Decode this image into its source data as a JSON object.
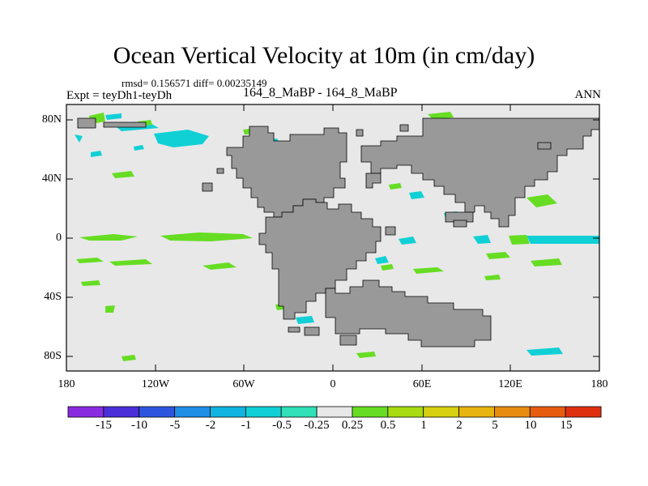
{
  "title": "Ocean Vertical Velocity at 10m (in cm/day)",
  "stats_text": "rmsd= 0.156571 diff= 0.00235149",
  "experiment_label": "Expt = teyDh1-teyDh",
  "case_label": "164_8_MaBP - 164_8_MaBP",
  "season_label": "ANN",
  "y_ticks": [
    "80N",
    "40N",
    "0",
    "40S",
    "80S"
  ],
  "x_ticks": [
    "180",
    "120W",
    "60W",
    "0",
    "60E",
    "120E",
    "180"
  ],
  "colorbar": {
    "colors": [
      "#8a2be2",
      "#4b2fd8",
      "#2e55e0",
      "#1f8fe6",
      "#10b4e0",
      "#10d0d6",
      "#2fe0b8",
      "#e8e8e8",
      "#66dd22",
      "#a8dc10",
      "#d7d010",
      "#e8b410",
      "#e88c10",
      "#e85c10",
      "#e03010"
    ],
    "labels": [
      "-15",
      "-10",
      "-5",
      "-2",
      "-1",
      "-0.5",
      "-0.25",
      "0.25",
      "0.5",
      "1",
      "2",
      "5",
      "10",
      "15"
    ]
  },
  "colors": {
    "land": "#999999",
    "ocean_background": "#e8e8e8",
    "negative_anomaly": "#10d0d6",
    "positive_anomaly": "#66dd22"
  }
}
